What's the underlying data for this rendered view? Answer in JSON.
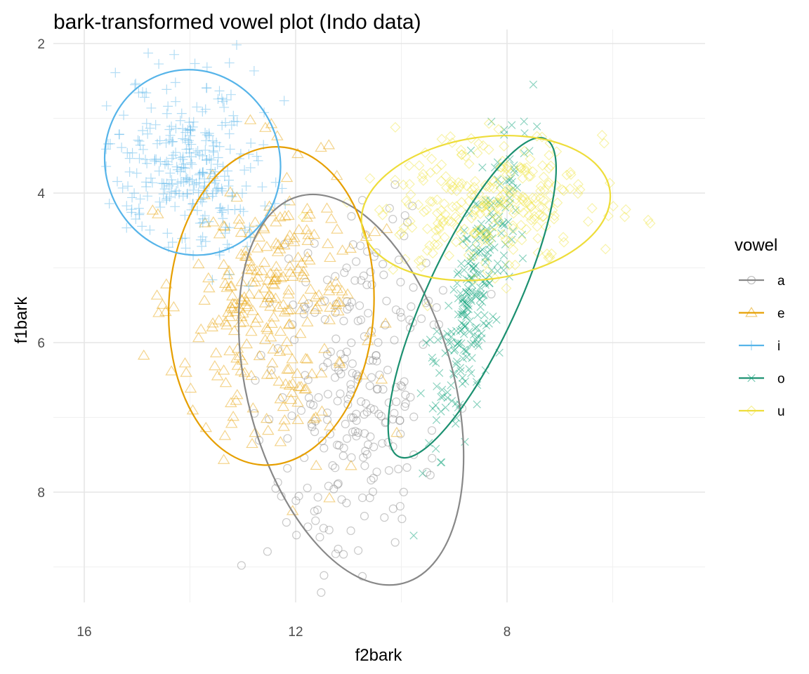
{
  "chart_data": {
    "type": "scatter",
    "title": "bark-transformed vowel plot (Indo data)",
    "xlabel": "f2bark",
    "ylabel": "f1bark",
    "x_reversed": true,
    "y_reversed": true,
    "xlim": [
      16.4,
      4.9
    ],
    "ylim": [
      2.0,
      9.5
    ],
    "x_ticks": [
      16,
      12,
      8
    ],
    "x_minor_ticks": [
      14,
      10,
      6
    ],
    "y_ticks": [
      2,
      4,
      6,
      8
    ],
    "y_minor_ticks": [
      3,
      5,
      7,
      9
    ],
    "grid": true,
    "legend": {
      "title": "vowel",
      "position": "right"
    },
    "series": [
      {
        "name": "a",
        "shape": "circle",
        "color": "#888888",
        "n": 260,
        "center": [
          10.9,
          6.65
        ],
        "sd": [
          0.8,
          1.25
        ],
        "corr": 0.28,
        "ellipse": {
          "center": [
            10.95,
            6.63
          ],
          "rx": 1.95,
          "ry": 2.68,
          "angle_deg": -15.2
        }
      },
      {
        "name": "e",
        "shape": "triangle",
        "color": "#E69F00",
        "n": 280,
        "center": [
          12.4,
          5.5
        ],
        "sd": [
          0.85,
          0.92
        ],
        "corr": -0.08,
        "ellipse": {
          "center": [
            12.46,
            5.51
          ],
          "rx": 1.94,
          "ry": 2.13,
          "angle_deg": 3.0
        }
      },
      {
        "name": "i",
        "shape": "plus",
        "color": "#56B4E9",
        "n": 300,
        "center": [
          14.0,
          3.6
        ],
        "sd": [
          0.75,
          0.55
        ],
        "corr": -0.1,
        "ellipse": {
          "center": [
            13.95,
            3.59
          ],
          "rx": 1.65,
          "ry": 1.25,
          "angle_deg": -20.0
        }
      },
      {
        "name": "o",
        "shape": "x",
        "color": "#009E73",
        "n": 260,
        "center": [
          8.65,
          5.4
        ],
        "sd": [
          0.45,
          1.05
        ],
        "corr": 0.82,
        "ellipse": {
          "center": [
            8.66,
            5.4
          ],
          "rx": 0.86,
          "ry": 2.34,
          "angle_deg": 24.7
        }
      },
      {
        "name": "u",
        "shape": "diamond",
        "color": "#F0E442",
        "n": 280,
        "center": [
          8.3,
          4.1
        ],
        "sd": [
          1.0,
          0.42
        ],
        "corr": 0.05,
        "ellipse": {
          "center": [
            8.4,
            4.2
          ],
          "rx": 2.37,
          "ry": 0.95,
          "angle_deg": -8.0
        }
      }
    ]
  }
}
